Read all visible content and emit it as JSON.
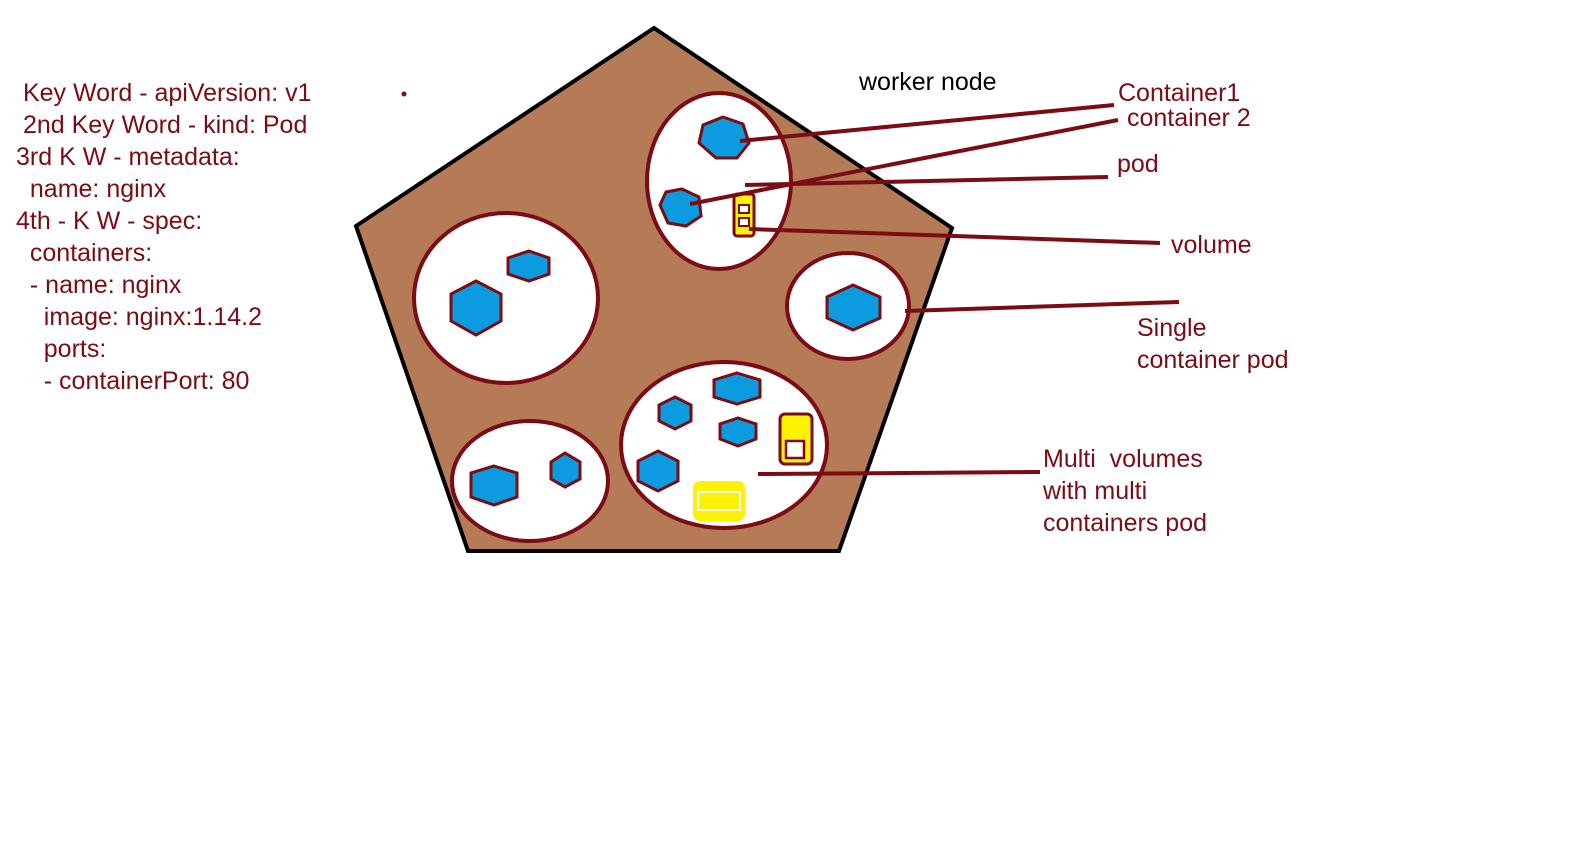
{
  "yaml_lines": [
    " Key Word - apiVersion: v1",
    " 2nd Key Word - kind: Pod",
    "3rd K W - metadata:",
    "  name: nginx",
    "4th - K W - spec:",
    "  containers:",
    "  - name: nginx",
    "    image: nginx:1.14.2",
    "    ports:",
    "    - containerPort: 80"
  ],
  "labels": {
    "worker_node": "worker node",
    "container1": "Container1",
    "container2": "container 2",
    "pod": "pod",
    "volume": "volume",
    "single_1": "Single",
    "single_2": "container pod",
    "multi_1": "Multi  volumes",
    "multi_2": "with multi",
    "multi_3": "containers pod"
  },
  "colors": {
    "node_fill": "#b57a56",
    "pod_stroke": "#7b0c14",
    "container_fill": "#0b9bde",
    "volume_fill": "#fff200",
    "text": "#7b0c14"
  }
}
